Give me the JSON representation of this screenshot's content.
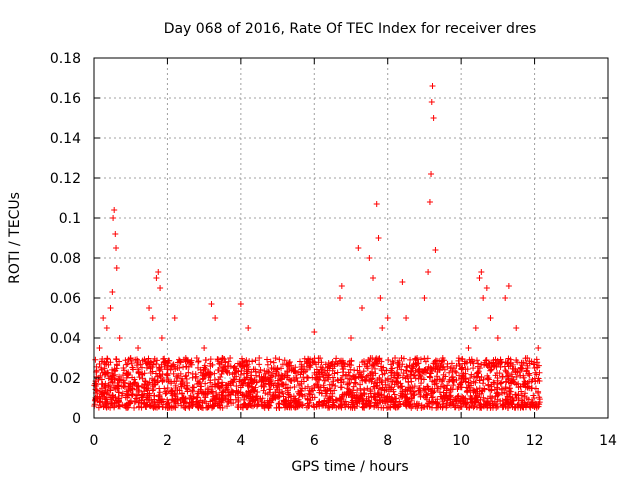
{
  "chart_data": {
    "type": "scatter",
    "title": "Day 068 of 2016, Rate Of TEC Index for receiver dres",
    "xlabel": "GPS time / hours",
    "ylabel": "ROTI / TECUs",
    "xlim": [
      0,
      14
    ],
    "ylim": [
      0,
      0.18
    ],
    "xticks": [
      0,
      2,
      4,
      6,
      8,
      10,
      12,
      14
    ],
    "xtick_labels": [
      "0",
      "2",
      "4",
      "6",
      "8",
      "10",
      "12",
      "14"
    ],
    "yticks": [
      0,
      0.02,
      0.04,
      0.06,
      0.08,
      0.1,
      0.12,
      0.14,
      0.16,
      0.18
    ],
    "ytick_labels": [
      "0",
      "0.02",
      "0.04",
      "0.06",
      "0.08",
      "0.1",
      "0.12",
      "0.14",
      "0.16",
      "0.18"
    ],
    "grid": true,
    "marker": "+",
    "color": "#ff0000",
    "series": [
      {
        "name": "ROTI",
        "x": [
          0.05,
          0.15,
          0.25,
          0.35,
          0.45,
          0.5,
          0.52,
          0.55,
          0.58,
          0.6,
          0.62,
          0.7,
          0.8,
          1.0,
          1.2,
          1.5,
          1.6,
          1.7,
          1.75,
          1.8,
          1.85,
          1.9,
          2.0,
          2.2,
          2.5,
          2.8,
          3.0,
          3.2,
          3.3,
          3.5,
          3.8,
          4.0,
          4.2,
          4.5,
          4.8,
          5.0,
          5.5,
          5.8,
          6.0,
          6.5,
          6.7,
          6.75,
          7.0,
          7.2,
          7.3,
          7.5,
          7.6,
          7.7,
          7.75,
          7.8,
          7.85,
          8.0,
          8.2,
          8.4,
          8.5,
          8.8,
          9.0,
          9.1,
          9.15,
          9.18,
          9.2,
          9.22,
          9.25,
          9.3,
          9.5,
          9.8,
          10.0,
          10.2,
          10.4,
          10.5,
          10.55,
          10.6,
          10.7,
          10.8,
          11.0,
          11.2,
          11.3,
          11.5,
          11.8,
          12.0,
          12.1
        ],
        "y": [
          0.016,
          0.035,
          0.05,
          0.045,
          0.055,
          0.063,
          0.1,
          0.104,
          0.092,
          0.085,
          0.075,
          0.04,
          0.025,
          0.03,
          0.035,
          0.055,
          0.05,
          0.07,
          0.073,
          0.065,
          0.04,
          0.028,
          0.025,
          0.05,
          0.03,
          0.03,
          0.035,
          0.057,
          0.05,
          0.03,
          0.025,
          0.057,
          0.045,
          0.03,
          0.02,
          0.025,
          0.02,
          0.02,
          0.043,
          0.028,
          0.06,
          0.066,
          0.04,
          0.085,
          0.055,
          0.08,
          0.07,
          0.107,
          0.09,
          0.06,
          0.045,
          0.05,
          0.03,
          0.068,
          0.05,
          0.03,
          0.06,
          0.073,
          0.108,
          0.122,
          0.158,
          0.166,
          0.15,
          0.084,
          0.03,
          0.025,
          0.02,
          0.035,
          0.045,
          0.07,
          0.073,
          0.06,
          0.065,
          0.05,
          0.04,
          0.06,
          0.066,
          0.045,
          0.03,
          0.025,
          0.035
        ]
      }
    ],
    "base_band": {
      "x_range": [
        0,
        12.15
      ],
      "y_range": [
        0.005,
        0.03
      ],
      "description_count": 2400
    }
  }
}
